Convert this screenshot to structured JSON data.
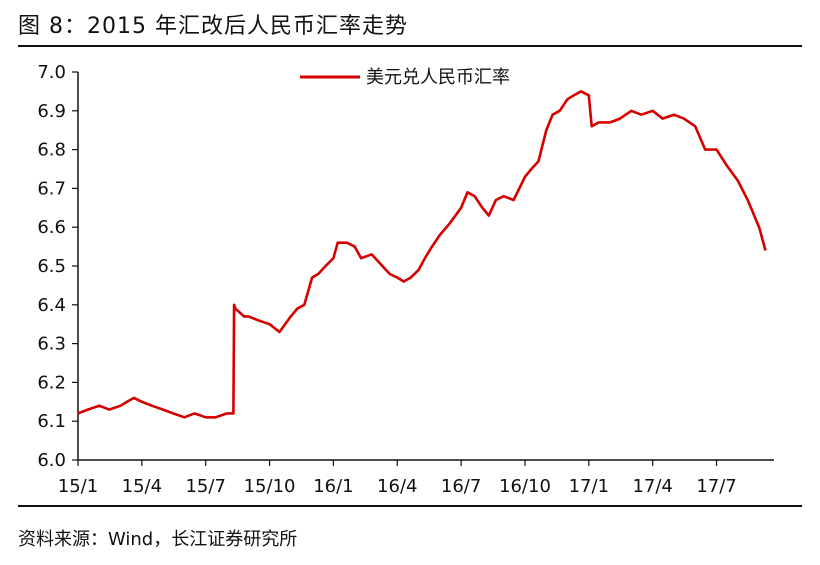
{
  "header": {
    "title": "图 8：2015 年汇改后人民币汇率走势"
  },
  "footer": {
    "source": "资料来源：Wind，长江证券研究所"
  },
  "colors": {
    "series": "#d60000",
    "axis": "#111111"
  },
  "chart_data": {
    "type": "line",
    "title": "",
    "xlabel": "",
    "ylabel": "",
    "ylim": [
      6.0,
      7.0
    ],
    "yticks": [
      "6.0",
      "6.1",
      "6.2",
      "6.3",
      "6.4",
      "6.5",
      "6.6",
      "6.7",
      "6.8",
      "6.9",
      "7.0"
    ],
    "xticks": [
      "15/1",
      "15/4",
      "15/7",
      "15/10",
      "16/1",
      "16/4",
      "16/7",
      "16/10",
      "17/1",
      "17/4",
      "17/7"
    ],
    "grid": false,
    "legend_position": "top-center",
    "series": [
      {
        "name": "美元兑人民币汇率",
        "x": [
          "2015-01-01",
          "2015-01-15",
          "2015-02-01",
          "2015-02-15",
          "2015-03-01",
          "2015-03-10",
          "2015-03-20",
          "2015-04-01",
          "2015-04-15",
          "2015-05-01",
          "2015-05-15",
          "2015-06-01",
          "2015-06-15",
          "2015-07-01",
          "2015-07-15",
          "2015-08-01",
          "2015-08-10",
          "2015-08-11",
          "2015-08-13",
          "2015-08-25",
          "2015-09-01",
          "2015-09-15",
          "2015-10-01",
          "2015-10-15",
          "2015-11-01",
          "2015-11-10",
          "2015-11-20",
          "2015-12-01",
          "2015-12-10",
          "2015-12-20",
          "2016-01-01",
          "2016-01-07",
          "2016-01-20",
          "2016-02-01",
          "2016-02-10",
          "2016-02-25",
          "2016-03-10",
          "2016-03-20",
          "2016-04-01",
          "2016-04-10",
          "2016-04-20",
          "2016-05-01",
          "2016-05-10",
          "2016-05-20",
          "2016-06-01",
          "2016-06-15",
          "2016-07-01",
          "2016-07-10",
          "2016-07-20",
          "2016-08-01",
          "2016-08-10",
          "2016-08-20",
          "2016-09-01",
          "2016-09-15",
          "2016-10-01",
          "2016-10-10",
          "2016-10-20",
          "2016-11-01",
          "2016-11-10",
          "2016-11-20",
          "2016-12-01",
          "2016-12-10",
          "2016-12-20",
          "2017-01-01",
          "2017-01-05",
          "2017-01-15",
          "2017-02-01",
          "2017-02-15",
          "2017-03-01",
          "2017-03-15",
          "2017-04-01",
          "2017-04-15",
          "2017-05-01",
          "2017-05-15",
          "2017-06-01",
          "2017-06-15",
          "2017-07-01",
          "2017-07-15",
          "2017-08-01",
          "2017-08-15",
          "2017-09-01",
          "2017-09-10"
        ],
        "values": [
          6.12,
          6.13,
          6.14,
          6.13,
          6.14,
          6.15,
          6.16,
          6.15,
          6.14,
          6.13,
          6.12,
          6.11,
          6.12,
          6.11,
          6.11,
          6.12,
          6.12,
          6.4,
          6.39,
          6.37,
          6.37,
          6.36,
          6.35,
          6.33,
          6.37,
          6.39,
          6.4,
          6.47,
          6.48,
          6.5,
          6.52,
          6.56,
          6.56,
          6.55,
          6.52,
          6.53,
          6.5,
          6.48,
          6.47,
          6.46,
          6.47,
          6.49,
          6.52,
          6.55,
          6.58,
          6.61,
          6.65,
          6.69,
          6.68,
          6.65,
          6.63,
          6.67,
          6.68,
          6.67,
          6.73,
          6.75,
          6.77,
          6.85,
          6.89,
          6.9,
          6.93,
          6.94,
          6.95,
          6.94,
          6.86,
          6.87,
          6.87,
          6.88,
          6.9,
          6.89,
          6.9,
          6.88,
          6.89,
          6.88,
          6.86,
          6.8,
          6.8,
          6.76,
          6.72,
          6.67,
          6.6,
          6.54
        ]
      }
    ]
  }
}
